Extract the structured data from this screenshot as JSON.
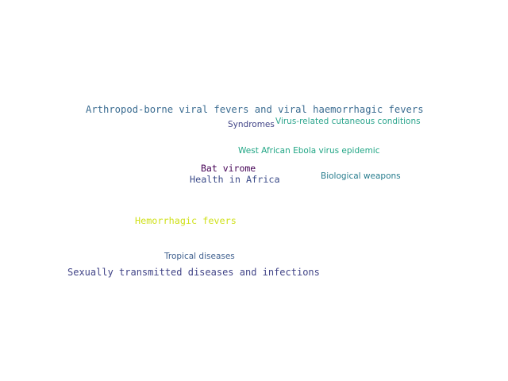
{
  "word_cloud": {
    "words": [
      {
        "text": "Arthropod-borne viral fevers and viral haemorrhagic fevers",
        "color": "#3b6c91"
      },
      {
        "text": "Syndromes",
        "color": "#414487"
      },
      {
        "text": "Virus-related cutaneous conditions",
        "color": "#2ca58d"
      },
      {
        "text": "West African Ebola virus epidemic",
        "color": "#21a685"
      },
      {
        "text": "Bat virome",
        "color": "#440154"
      },
      {
        "text": "Health in Africa",
        "color": "#3d4d8a"
      },
      {
        "text": "Biological weapons",
        "color": "#287d8e"
      },
      {
        "text": "Hemorrhagic fevers",
        "color": "#d0e11c"
      },
      {
        "text": "Tropical diseases",
        "color": "#3e5f8e"
      },
      {
        "text": "Sexually transmitted diseases and infections",
        "color": "#414487"
      }
    ]
  }
}
